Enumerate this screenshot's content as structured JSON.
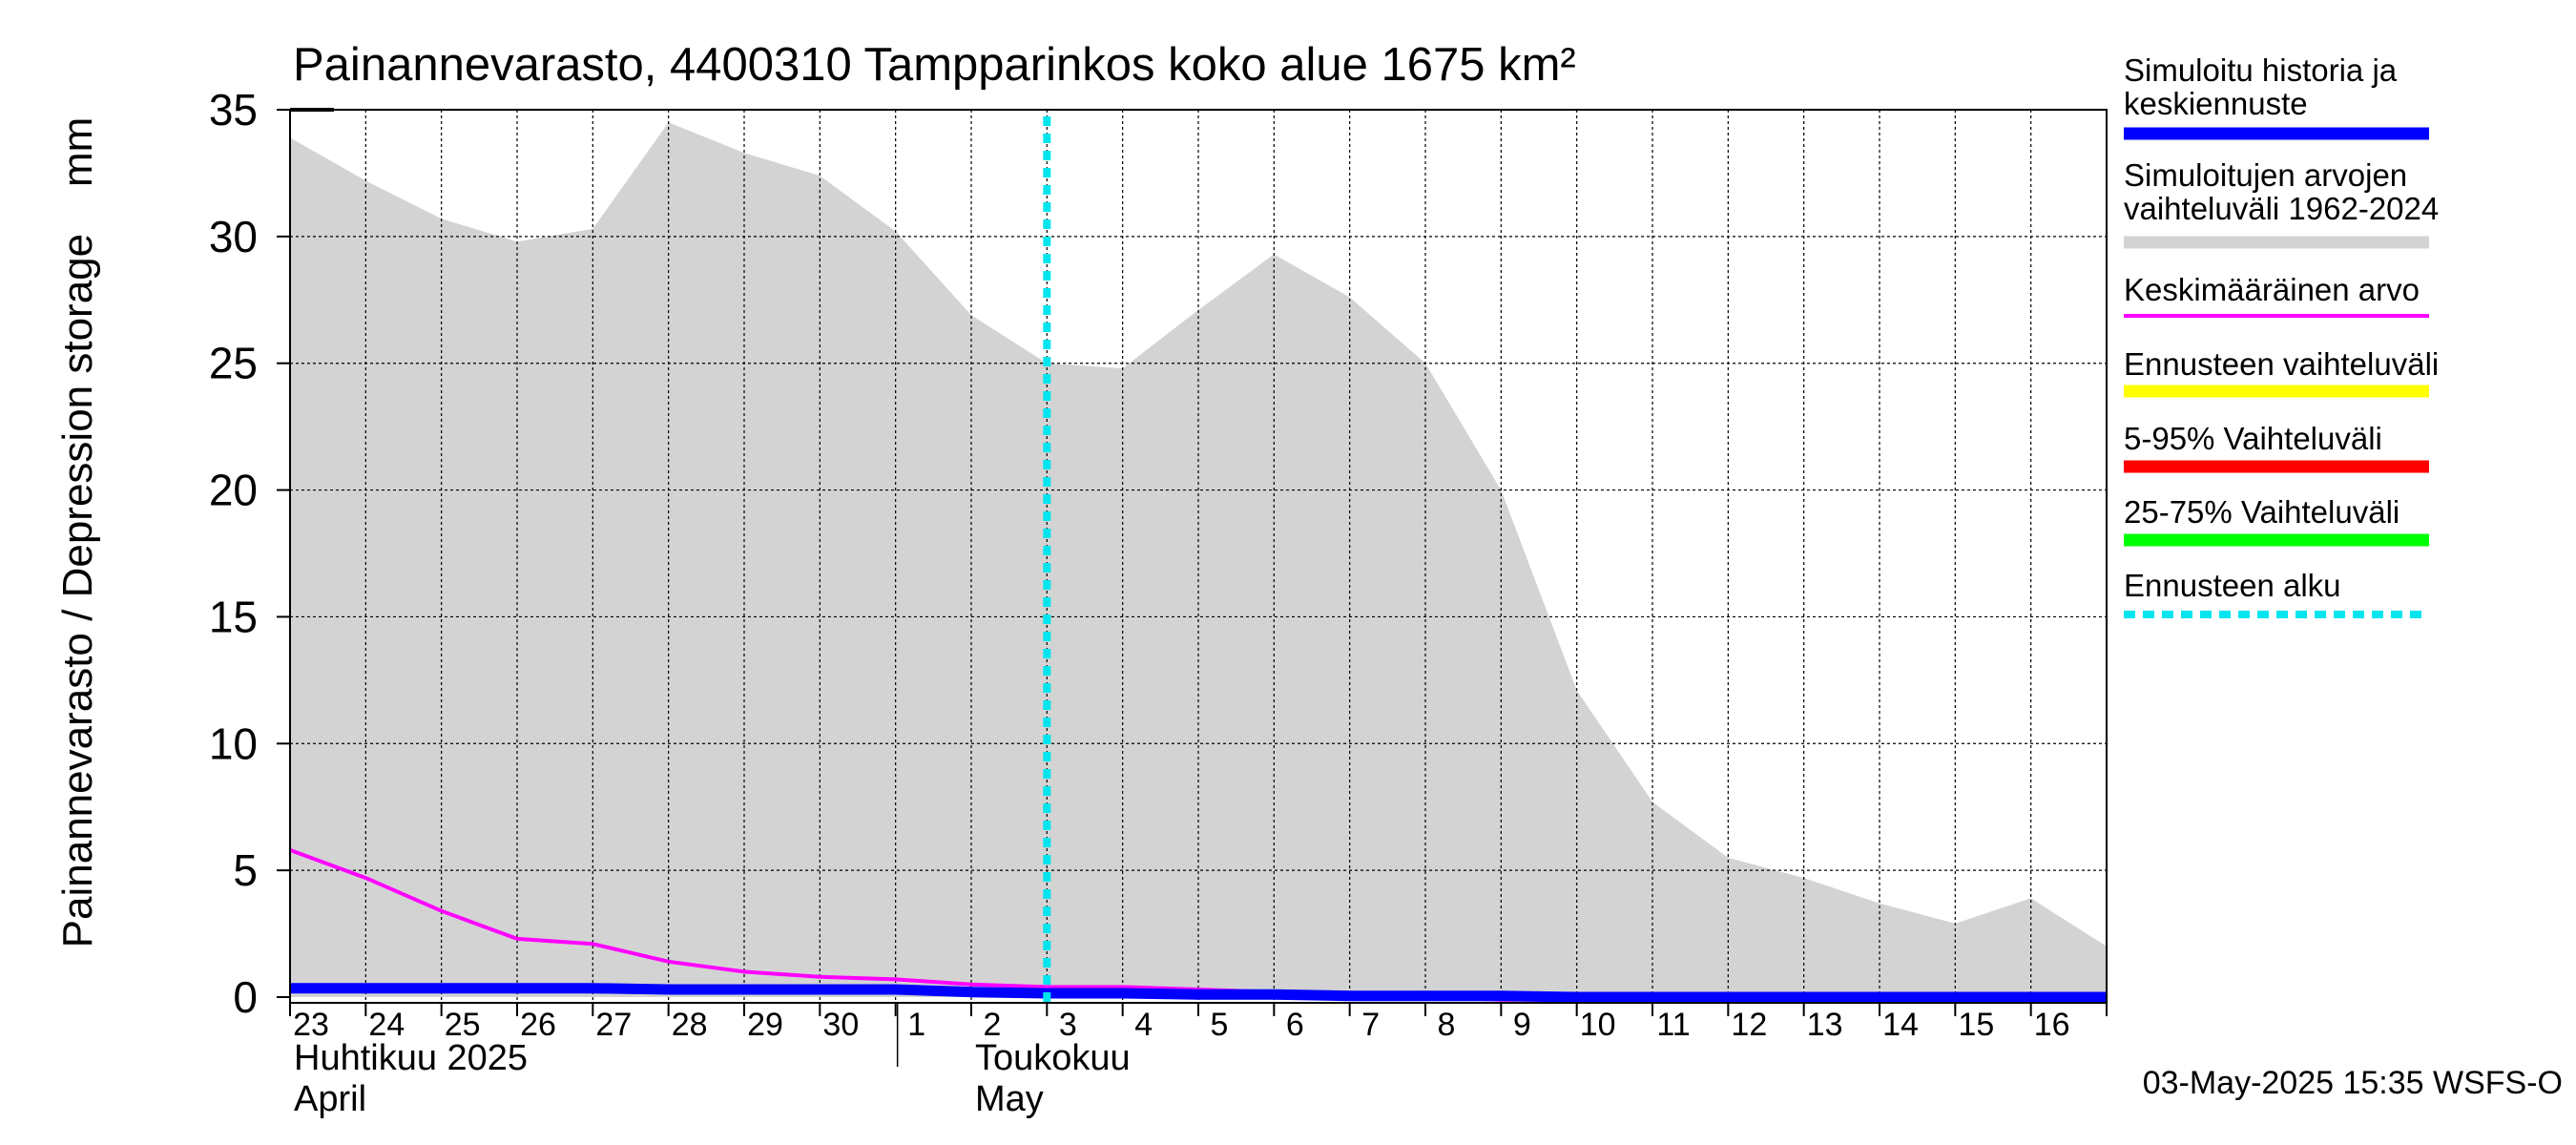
{
  "chart_data": {
    "type": "area",
    "title": "Painannevarasto, 4400310 Tampparinkos koko alue 1675 km²",
    "ylabel": "Painannevarasto / Depression storage    mm",
    "ylim": [
      0,
      35
    ],
    "yticks": [
      0,
      5,
      10,
      15,
      20,
      25,
      30,
      35
    ],
    "xlim": [
      0,
      24
    ],
    "day_labels": [
      "23",
      "24",
      "25",
      "26",
      "27",
      "28",
      "29",
      "30",
      "1",
      "2",
      "3",
      "4",
      "5",
      "6",
      "7",
      "8",
      "9",
      "10",
      "11",
      "12",
      "13",
      "14",
      "15",
      "16"
    ],
    "month_labels": [
      {
        "line1": "Huhtikuu  2025",
        "line2": "April",
        "start_day_index": 0
      },
      {
        "line1": "Toukokuu",
        "line2": "May",
        "start_day_index": 9
      }
    ],
    "month_divider_day_index": 8,
    "forecast_start_x": 10,
    "series": [
      {
        "name": "Simuloitujen arvojen vaihteluväli 1962-2024",
        "kind": "range",
        "x": [
          0,
          1,
          2,
          3,
          4,
          5,
          6,
          7,
          8,
          9,
          10,
          11,
          12,
          13,
          14,
          15,
          16,
          17,
          18,
          19,
          20,
          21,
          22,
          23,
          24
        ],
        "upper": [
          33.9,
          32.2,
          30.7,
          29.8,
          30.3,
          34.5,
          33.3,
          32.4,
          30.2,
          26.9,
          25.0,
          24.8,
          27.1,
          29.3,
          27.6,
          25.0,
          20.0,
          12.1,
          7.7,
          5.5,
          4.7,
          3.7,
          2.9,
          3.9,
          2.0
        ],
        "lower": [
          0,
          0,
          0,
          0,
          0,
          0,
          0,
          0,
          0,
          0,
          0,
          0,
          0,
          0,
          0,
          0,
          0,
          0,
          0,
          0,
          0,
          0,
          0,
          0,
          0
        ]
      },
      {
        "name": "Keskimääräinen arvo",
        "kind": "line",
        "x": [
          0,
          1,
          2,
          3,
          4,
          5,
          6,
          7,
          8,
          9,
          10,
          11,
          12,
          13,
          14,
          15,
          16,
          17,
          18,
          19,
          20,
          21,
          22,
          23,
          24
        ],
        "values": [
          5.8,
          4.7,
          3.4,
          2.3,
          2.1,
          1.4,
          1.0,
          0.8,
          0.7,
          0.5,
          0.4,
          0.4,
          0.3,
          0.2,
          0.1,
          0.0,
          -0.1,
          -0.1,
          -0.1,
          -0.1,
          -0.1,
          -0.1,
          -0.1,
          -0.1,
          -0.1
        ]
      },
      {
        "name": "Simuloitu historia ja keskiennuste",
        "kind": "line",
        "x": [
          0,
          1,
          2,
          3,
          4,
          5,
          6,
          7,
          8,
          9,
          10,
          11,
          12,
          13,
          14,
          15,
          16,
          17,
          18,
          19,
          20,
          21,
          22,
          23,
          24
        ],
        "values": [
          0.35,
          0.35,
          0.35,
          0.35,
          0.35,
          0.3,
          0.3,
          0.3,
          0.3,
          0.2,
          0.15,
          0.15,
          0.1,
          0.1,
          0.05,
          0.05,
          0.05,
          0.0,
          0.0,
          0.0,
          0.0,
          0.0,
          0.0,
          0.0,
          0.0
        ]
      }
    ],
    "legend": [
      {
        "label": "Simuloitu historia ja\nkeskiennuste",
        "color": "#0000ff",
        "style": "solid"
      },
      {
        "label": "Simuloitujen arvojen\nvaihteluväli 1962-2024",
        "color": "#d3d3d3",
        "style": "solid"
      },
      {
        "label": "Keskimääräinen arvo",
        "color": "#ff00ff",
        "style": "thin"
      },
      {
        "label": "Ennusteen vaihteluväli",
        "color": "#ffff00",
        "style": "solid"
      },
      {
        "label": "5-95% Vaihteluväli",
        "color": "#ff0000",
        "style": "solid"
      },
      {
        "label": "25-75% Vaihteluväli",
        "color": "#00ff00",
        "style": "solid"
      },
      {
        "label": "Ennusteen alku",
        "color": "#00e5ee",
        "style": "dotted"
      }
    ],
    "timestamp": "03-May-2025 15:35 WSFS-O",
    "colors": {
      "range_fill": "#d3d3d3",
      "mean_line": "#ff00ff",
      "history_line": "#0000ff",
      "forecast_line": "#00e5ee",
      "grid": "#000000"
    }
  }
}
